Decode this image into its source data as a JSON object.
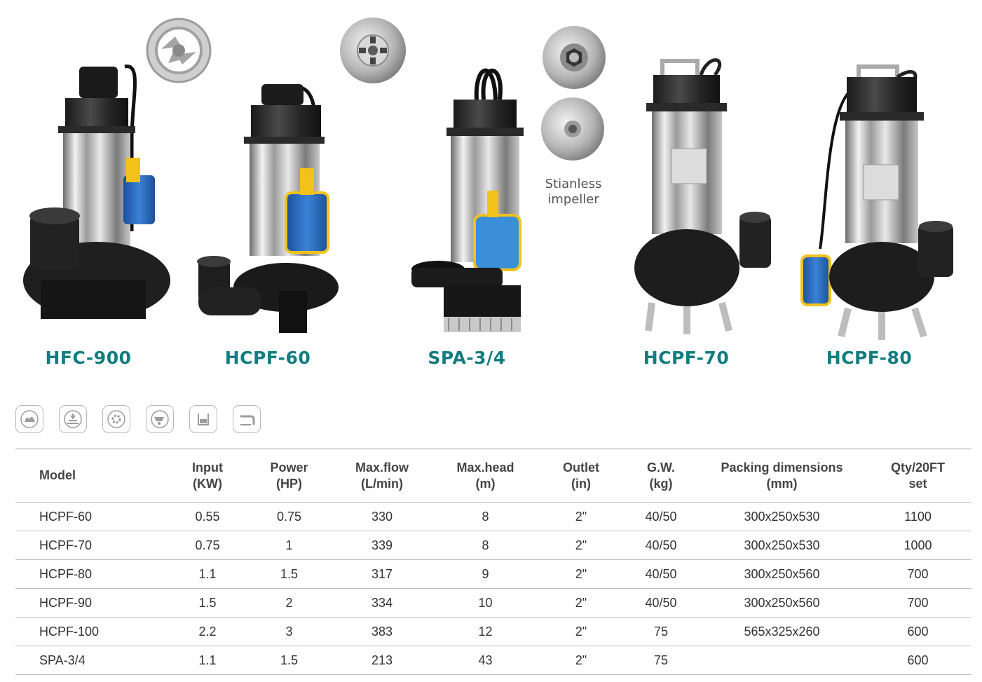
{
  "products": [
    {
      "name": "HFC-900"
    },
    {
      "name": "HCPF-60"
    },
    {
      "name": "SPA-3/4"
    },
    {
      "name": "HCPF-70"
    },
    {
      "name": "HCPF-80"
    }
  ],
  "impeller_caption": {
    "line1": "Stianless",
    "line2": "impeller"
  },
  "application_icons": [
    "garden-icon",
    "farm-icon",
    "industry-gear-icon",
    "wheelbarrow-icon",
    "tank-icon",
    "drain-pipe-icon"
  ],
  "table": {
    "headers": [
      {
        "line1": "Model",
        "line2": ""
      },
      {
        "line1": "Input",
        "line2": "(KW)"
      },
      {
        "line1": "Power",
        "line2": "(HP)"
      },
      {
        "line1": "Max.flow",
        "line2": "(L/min)"
      },
      {
        "line1": "Max.head",
        "line2": "(m)"
      },
      {
        "line1": "Outlet",
        "line2": "(in)"
      },
      {
        "line1": "G.W.",
        "line2": "(kg)"
      },
      {
        "line1": "Packing dimensions",
        "line2": "(mm)"
      },
      {
        "line1": "Qty/20FT",
        "line2": "set"
      }
    ],
    "rows": [
      [
        "HCPF-60",
        "0.55",
        "0.75",
        "330",
        "8",
        "2\"",
        "40/50",
        "300x250x530",
        "1100"
      ],
      [
        "HCPF-70",
        "0.75",
        "1",
        "339",
        "8",
        "2\"",
        "40/50",
        "300x250x530",
        "1000"
      ],
      [
        "HCPF-80",
        "1.1",
        "1.5",
        "317",
        "9",
        "2\"",
        "40/50",
        "300x250x560",
        "700"
      ],
      [
        "HCPF-90",
        "1.5",
        "2",
        "334",
        "10",
        "2\"",
        "40/50",
        "300x250x560",
        "700"
      ],
      [
        "HCPF-100",
        "2.2",
        "3",
        "383",
        "12",
        "2\"",
        "75",
        "565x325x260",
        "600"
      ],
      [
        "SPA-3/4",
        "1.1",
        "1.5",
        "213",
        "43",
        "2\"",
        "75",
        "",
        "600"
      ]
    ]
  },
  "colors": {
    "accent": "#127c80",
    "float_blue": "#2f6fc4",
    "float_yellow": "#f2c21b"
  }
}
